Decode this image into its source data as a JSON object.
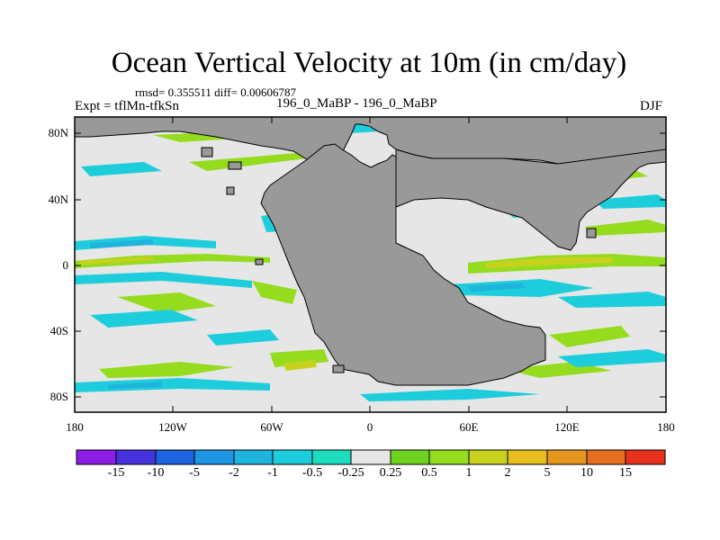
{
  "title": "Ocean Vertical Velocity at 10m (in cm/day)",
  "stats_text": "rmsd= 0.355511 diff= 0.00606787",
  "experiment_label": "Expt = tflMn-tfkSn",
  "runs_label": "196_0_MaBP - 196_0_MaBP",
  "season_label": "DJF",
  "lat_ticks": [
    "80N",
    "40N",
    "0",
    "40S",
    "80S"
  ],
  "lon_ticks": [
    "180",
    "120W",
    "60W",
    "0",
    "60E",
    "120E",
    "180"
  ],
  "colorbar": {
    "labels": [
      "-15",
      "-10",
      "-5",
      "-2",
      "-1",
      "-0.5",
      "-0.25",
      "0.25",
      "0.5",
      "1",
      "2",
      "5",
      "10",
      "15"
    ],
    "colors": [
      "#8c1ee6",
      "#4632dc",
      "#1e64e1",
      "#1e96e6",
      "#1eb4dc",
      "#1ecddc",
      "#1edcbe",
      "#e6e6e6",
      "#6ed21e",
      "#96dc1e",
      "#c8d21e",
      "#e6be1e",
      "#e6961e",
      "#e66e1e",
      "#e6321e"
    ]
  },
  "colors": {
    "land": "#999999",
    "ocean_background": "#e6e6e6",
    "upwelling_light": "#96dc1e",
    "upwelling_mid": "#c8d21e",
    "downwelling_light": "#1ecddc",
    "downwelling_mid": "#1eb4dc"
  }
}
